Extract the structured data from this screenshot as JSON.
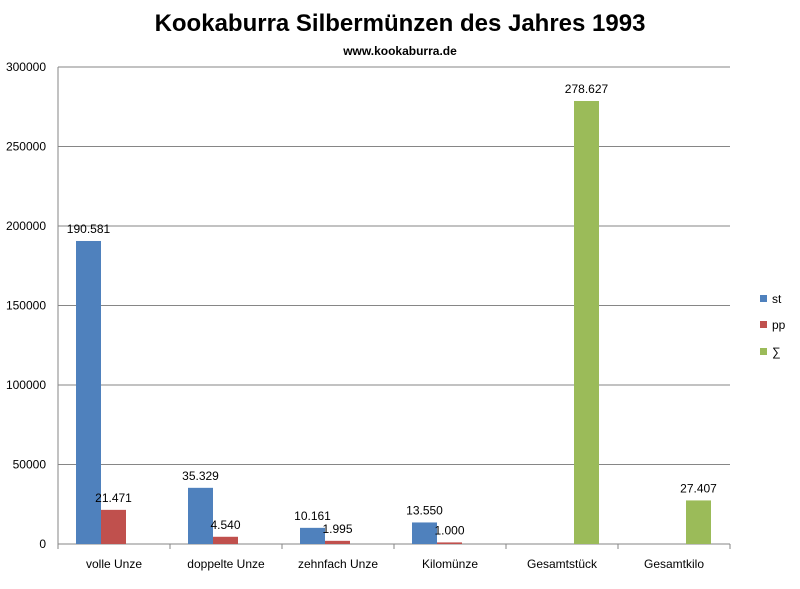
{
  "chart_data": {
    "type": "bar",
    "title": "Kookaburra Silbermünzen des Jahres 1993",
    "subtitle": "www.kookaburra.de",
    "categories": [
      "volle Unze",
      "doppelte Unze",
      "zehnfach Unze",
      "Kilomünze",
      "Gesamtstück",
      "Gesamtkilo"
    ],
    "series": [
      {
        "name": "st",
        "color": "#4f81bd",
        "values": [
          190581,
          35329,
          10161,
          13550,
          null,
          null
        ],
        "labels": [
          "190.581",
          "35.329",
          "10.161",
          "13.550",
          "",
          ""
        ]
      },
      {
        "name": "pp",
        "color": "#c0504d",
        "values": [
          21471,
          4540,
          1995,
          1000,
          null,
          null
        ],
        "labels": [
          "21.471",
          "4.540",
          "1.995",
          "1.000",
          "",
          ""
        ]
      },
      {
        "name": "∑",
        "color": "#9bbb59",
        "values": [
          null,
          null,
          null,
          null,
          278627,
          27407
        ],
        "labels": [
          "",
          "",
          "",
          "",
          "278.627",
          "27.407"
        ]
      }
    ],
    "ylim": [
      0,
      300000
    ],
    "yticks": [
      "0",
      "50000",
      "100000",
      "150000",
      "200000",
      "250000",
      "300000"
    ],
    "ytick_values": [
      0,
      50000,
      100000,
      150000,
      200000,
      250000,
      300000
    ],
    "grid": true,
    "legend": "right"
  }
}
